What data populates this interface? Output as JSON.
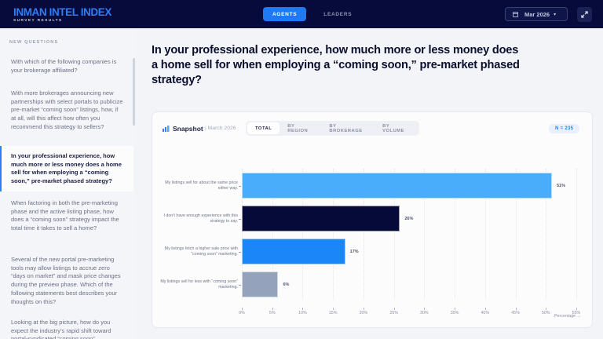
{
  "header": {
    "title": "INMAN INTEL INDEX",
    "subtitle": "SURVEY RESULTS",
    "tabs": [
      {
        "label": "AGENTS",
        "active": true
      },
      {
        "label": "LEADERS",
        "active": false
      }
    ],
    "date_selector": {
      "icon": "calendar-icon",
      "value": "Mar 2026",
      "chevron": "▾"
    },
    "expand_icon": "expand-icon"
  },
  "sidebar": {
    "heading": "NEW QUESTIONS",
    "items": [
      {
        "label": "With which of the following companies is your brokerage affiliated?",
        "active": false
      },
      {
        "label": "With more brokerages announcing new partnerships with select portals to publicize pre-market “coming soon” listings, how, if at all, will this affect how often you recommend this strategy to sellers?",
        "active": false
      },
      {
        "label": "In your professional experience, how much more or less money does a home sell for when employing a “coming soon,” pre-market phased strategy?",
        "active": true
      },
      {
        "label": "When factoring in both the pre-marketing phase and the active listing phase, how does a “coming soon” strategy impact the total time it takes to sell a home?",
        "active": false
      },
      {
        "label": "Several of the new portal pre-marketing tools may allow listings to accrue zero “days on market” and mask price changes during the preview phase. Which of the following statements best describes your thoughts on this?",
        "active": false
      },
      {
        "label": "Looking at the big picture, how do you expect the industry’s rapid shift toward portal-syndicated “coming soon”",
        "active": false
      }
    ]
  },
  "main": {
    "question_title": "In your professional experience, how much more or less money does a home sell for when employing a “coming soon,” pre-market phased strategy?",
    "card": {
      "title": "Snapshot",
      "date": "| March 2026",
      "segments": [
        {
          "label": "TOTAL",
          "active": true
        },
        {
          "label": "BY REGION",
          "active": false
        },
        {
          "label": "BY BROKERAGE",
          "active": false
        },
        {
          "label": "BY VOLUME",
          "active": false
        }
      ],
      "sample_size": "N = 235"
    }
  },
  "chart_data": {
    "type": "bar",
    "orientation": "horizontal",
    "title": "Snapshot",
    "subtitle": "March 2026",
    "categories": [
      "My listings sell for about the same price either way.",
      "I don’t have enough experience with this strategy to say.",
      "My listings fetch a higher sale price with “coming soon” marketing.",
      "My listings sell for less with “coming soon” marketing."
    ],
    "values": [
      51,
      26,
      17,
      6
    ],
    "value_labels": [
      "51%",
      "26%",
      "17%",
      "6%"
    ],
    "colors": [
      "#4aadfc",
      "#050a38",
      "#1a86f7",
      "#94a3bb"
    ],
    "xlabel": "Percentage →",
    "ylabel": "",
    "xlim": [
      0,
      55
    ],
    "xticks": [
      "0%",
      "5%",
      "10%",
      "15%",
      "20%",
      "25%",
      "30%",
      "35%",
      "40%",
      "45%",
      "50%",
      "55%"
    ],
    "grid": true,
    "legend": "none",
    "n": 235
  }
}
